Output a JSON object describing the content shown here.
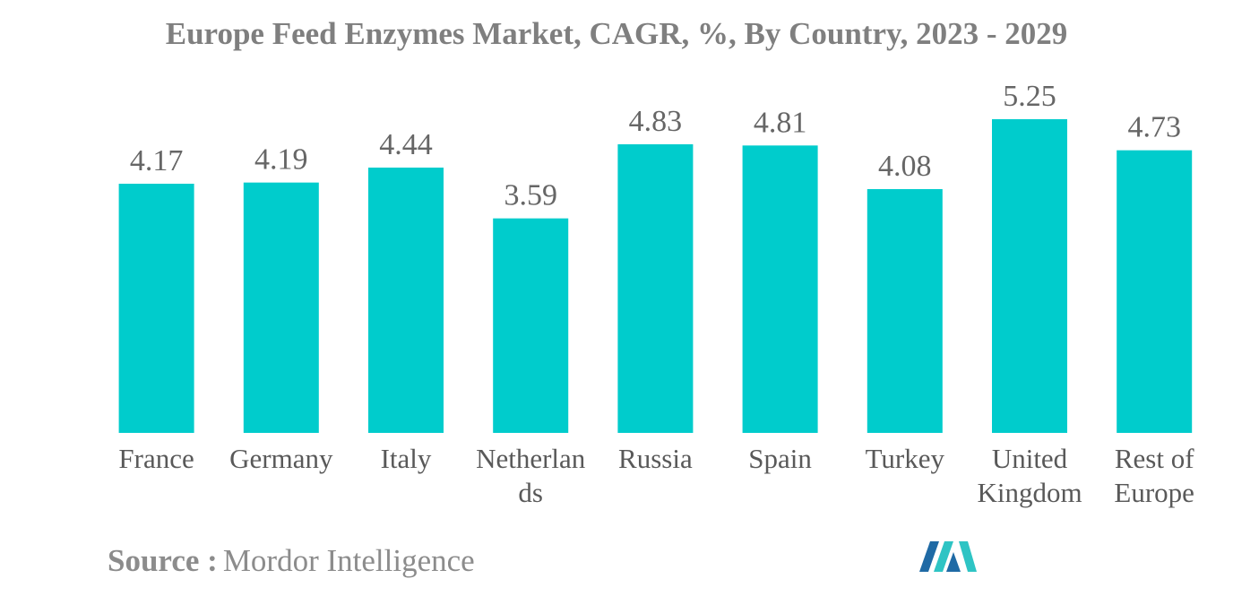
{
  "colors": {
    "bar": "#00cccc",
    "value_text": "#666666",
    "tick_text": "#595959",
    "title_text": "#7f7f7f",
    "source_text": "#8c8c8c",
    "logo_dark": "#1f6aa5",
    "logo_light": "#2ec4c4"
  },
  "chart_data": {
    "type": "bar",
    "title": "Europe Feed Enzymes Market, CAGR, %, By Country, 2023 - 2029",
    "xlabel": "",
    "ylabel": "",
    "categories": [
      "France",
      "Germany",
      "Italy",
      "Netherlands",
      "Russia",
      "Spain",
      "Turkey",
      "United Kingdom",
      "Rest of Europe"
    ],
    "category_label_lines": [
      [
        "France"
      ],
      [
        "Germany"
      ],
      [
        "Italy"
      ],
      [
        "Netherlan",
        "ds"
      ],
      [
        "Russia"
      ],
      [
        "Spain"
      ],
      [
        "Turkey"
      ],
      [
        "United",
        "Kingdom"
      ],
      [
        "Rest of",
        "Europe"
      ]
    ],
    "values": [
      4.17,
      4.19,
      4.44,
      3.59,
      4.83,
      4.81,
      4.08,
      5.25,
      4.73
    ],
    "value_labels": [
      "4.17",
      "4.19",
      "4.44",
      "3.59",
      "4.83",
      "4.81",
      "4.08",
      "5.25",
      "4.73"
    ],
    "ylim": [
      0,
      5.25
    ],
    "grid": false,
    "legend": "none"
  },
  "source": {
    "label": "Source :",
    "text": "Mordor Intelligence"
  },
  "logo": {
    "icon": "mordor-intelligence-logo"
  }
}
